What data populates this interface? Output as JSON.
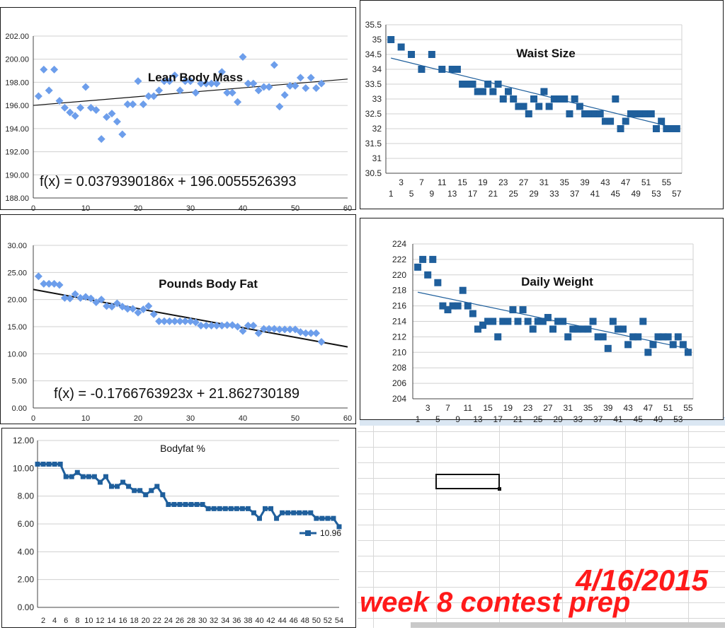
{
  "chart_data": [
    {
      "id": "lbm",
      "type": "scatter",
      "title": "Lean Body Mass",
      "equation": "f(x) = 0.0379390186x + 196.0055526393",
      "xlim": [
        0,
        60
      ],
      "xticks": [
        0,
        10,
        20,
        30,
        40,
        50,
        60
      ],
      "xtick_labels": [
        "0",
        "10",
        "20",
        "30",
        "40",
        "50",
        "60"
      ],
      "ylim": [
        188,
        202
      ],
      "yticks": [
        188,
        190,
        192,
        194,
        196,
        198,
        200,
        202
      ],
      "ytick_labels": [
        "188.00",
        "190.00",
        "192.00",
        "194.00",
        "196.00",
        "198.00",
        "200.00",
        "202.00"
      ],
      "marker": "diamond",
      "color": "#6d9eeb",
      "trendline": {
        "slope": 0.0379390186,
        "intercept": 196.0055526393,
        "x_range": [
          0,
          60
        ],
        "color": "#111111"
      },
      "series": [
        {
          "x": [
            1,
            2,
            3,
            4,
            5,
            6,
            7,
            8,
            9,
            10,
            11,
            12,
            13,
            14,
            15,
            16,
            17,
            18,
            19,
            20,
            21,
            22,
            23,
            24,
            25,
            26,
            27,
            28,
            29,
            30,
            31,
            32,
            33,
            34,
            35,
            36,
            37,
            38,
            39,
            40,
            41,
            42,
            43,
            44,
            45,
            46,
            47,
            48,
            49,
            50,
            51,
            52,
            53,
            54,
            55
          ],
          "y": [
            196.8,
            199.1,
            197.3,
            199.1,
            196.4,
            195.8,
            195.4,
            195.1,
            195.8,
            197.6,
            195.8,
            195.6,
            193.1,
            195.0,
            195.3,
            194.6,
            193.5,
            196.1,
            196.1,
            198.1,
            196.1,
            196.8,
            196.8,
            197.3,
            198.1,
            198.1,
            198.6,
            197.3,
            198.1,
            198.1,
            197.1,
            197.9,
            197.9,
            197.9,
            197.9,
            198.9,
            197.1,
            197.1,
            196.3,
            200.2,
            197.9,
            197.9,
            197.3,
            197.6,
            197.6,
            199.5,
            195.9,
            196.9,
            197.7,
            197.7,
            198.4,
            197.5,
            198.4,
            197.5,
            197.9
          ]
        }
      ]
    },
    {
      "id": "waist",
      "type": "scatter",
      "title": "Waist Size",
      "xlim": [
        0,
        58
      ],
      "xticks_top": [
        3,
        7,
        11,
        15,
        19,
        23,
        27,
        31,
        35,
        39,
        43,
        47,
        51,
        55
      ],
      "xticks_bottom": [
        1,
        5,
        9,
        13,
        17,
        21,
        25,
        29,
        33,
        37,
        41,
        45,
        49,
        53,
        57
      ],
      "ylim": [
        30.5,
        35.5
      ],
      "yticks": [
        30.5,
        31,
        31.5,
        32,
        32.5,
        33,
        33.5,
        34,
        34.5,
        35,
        35.5
      ],
      "ytick_labels": [
        "30.5",
        "31",
        "31.5",
        "32",
        "32.5",
        "33",
        "33.5",
        "34",
        "34.5",
        "35",
        "35.5"
      ],
      "marker": "square",
      "color": "#1f5f9c",
      "trendline": {
        "slope": -0.0422,
        "intercept": 34.42,
        "x_range": [
          1,
          57
        ],
        "color": "#1f5f9c"
      },
      "series": [
        {
          "x": [
            1,
            3,
            5,
            7,
            9,
            11,
            13,
            14,
            15,
            16,
            17,
            18,
            19,
            20,
            21,
            22,
            23,
            24,
            25,
            26,
            27,
            28,
            29,
            30,
            31,
            32,
            33,
            34,
            35,
            36,
            37,
            38,
            39,
            40,
            41,
            42,
            43,
            44,
            45,
            46,
            47,
            48,
            49,
            50,
            51,
            52,
            53,
            54,
            55,
            56,
            57
          ],
          "y": [
            35,
            34.75,
            34.5,
            34,
            34.5,
            34,
            34,
            34,
            33.5,
            33.5,
            33.5,
            33.25,
            33.25,
            33.5,
            33.25,
            33.5,
            33,
            33.25,
            33,
            32.75,
            32.75,
            32.5,
            33,
            32.75,
            33.25,
            32.75,
            33,
            33,
            33,
            32.5,
            33,
            32.75,
            32.5,
            32.5,
            32.5,
            32.5,
            32.25,
            32.25,
            33,
            32,
            32.25,
            32.5,
            32.5,
            32.5,
            32.5,
            32.5,
            32,
            32.25,
            32,
            32,
            32
          ]
        }
      ]
    },
    {
      "id": "fat",
      "type": "scatter",
      "title": "Pounds Body Fat",
      "equation": "f(x) = -0.1766763923x + 21.862730189",
      "xlim": [
        0,
        60
      ],
      "xticks": [
        0,
        10,
        20,
        30,
        40,
        50,
        60
      ],
      "xtick_labels": [
        "0",
        "10",
        "20",
        "30",
        "40",
        "50",
        "60"
      ],
      "ylim": [
        0,
        30
      ],
      "yticks": [
        0,
        5,
        10,
        15,
        20,
        25,
        30
      ],
      "ytick_labels": [
        "0.00",
        "5.00",
        "10.00",
        "15.00",
        "20.00",
        "25.00",
        "30.00"
      ],
      "marker": "diamond",
      "color": "#6d9eeb",
      "trendline": {
        "slope": -0.1766763923,
        "intercept": 21.862730189,
        "x_range": [
          0,
          60
        ],
        "color": "#111111"
      },
      "series": [
        {
          "x": [
            1,
            2,
            3,
            4,
            5,
            6,
            7,
            8,
            9,
            10,
            11,
            12,
            13,
            14,
            15,
            16,
            17,
            18,
            19,
            20,
            21,
            22,
            23,
            24,
            25,
            26,
            27,
            28,
            29,
            30,
            31,
            32,
            33,
            34,
            35,
            36,
            37,
            38,
            39,
            40,
            41,
            42,
            43,
            44,
            45,
            46,
            47,
            48,
            49,
            50,
            51,
            52,
            53,
            54,
            55
          ],
          "y": [
            24.3,
            22.9,
            22.9,
            22.9,
            22.7,
            20.3,
            20.2,
            21.0,
            20.3,
            20.5,
            20.2,
            19.5,
            20.0,
            18.8,
            18.7,
            19.3,
            18.7,
            18.3,
            18.3,
            17.6,
            18.2,
            18.8,
            17.3,
            16.0,
            16.0,
            16.0,
            16.0,
            16.0,
            16.0,
            16.0,
            15.8,
            15.2,
            15.2,
            15.2,
            15.2,
            15.2,
            15.3,
            15.3,
            15.0,
            14.2,
            15.2,
            15.2,
            13.8,
            14.6,
            14.6,
            14.6,
            14.5,
            14.5,
            14.5,
            14.5,
            14.0,
            13.8,
            13.8,
            13.8,
            12.2
          ]
        }
      ]
    },
    {
      "id": "dw",
      "type": "scatter",
      "title": "Daily Weight",
      "xlim": [
        0,
        56
      ],
      "xticks_top": [
        3,
        7,
        11,
        15,
        19,
        23,
        27,
        31,
        35,
        39,
        43,
        47,
        51,
        55
      ],
      "xticks_bottom": [
        1,
        5,
        9,
        13,
        17,
        21,
        25,
        29,
        33,
        37,
        41,
        45,
        49,
        53
      ],
      "ylim": [
        204,
        224
      ],
      "yticks": [
        204,
        206,
        208,
        210,
        212,
        214,
        216,
        218,
        220,
        222,
        224
      ],
      "ytick_labels": [
        "204",
        "206",
        "208",
        "210",
        "212",
        "214",
        "216",
        "218",
        "220",
        "222",
        "224"
      ],
      "marker": "square",
      "color": "#1f5f9c",
      "trendline": {
        "slope": -0.135,
        "intercept": 217.9,
        "x_range": [
          1,
          55
        ],
        "color": "#1f5f9c"
      },
      "series": [
        {
          "x": [
            1,
            2,
            3,
            4,
            5,
            6,
            7,
            8,
            9,
            10,
            11,
            12,
            13,
            14,
            15,
            16,
            17,
            18,
            19,
            20,
            21,
            22,
            23,
            24,
            25,
            26,
            27,
            28,
            29,
            30,
            31,
            32,
            33,
            34,
            35,
            36,
            37,
            38,
            39,
            40,
            41,
            42,
            43,
            44,
            45,
            46,
            47,
            48,
            49,
            50,
            51,
            52,
            53,
            54,
            55
          ],
          "y": [
            221,
            222,
            220,
            222,
            219,
            216,
            215.5,
            216,
            216,
            218,
            216,
            215,
            213,
            213.5,
            214,
            214,
            212,
            214,
            214,
            215.5,
            214,
            215.5,
            214,
            213,
            214,
            214,
            214.5,
            213,
            214,
            214,
            212,
            213,
            213,
            213,
            213,
            214,
            212,
            212,
            210.5,
            214,
            213,
            213,
            211,
            212,
            212,
            214,
            210,
            211,
            212,
            212,
            212,
            211,
            212,
            211,
            210
          ]
        }
      ]
    },
    {
      "id": "bf",
      "type": "line",
      "title": "Bodyfat %",
      "legend": "10.96",
      "legend_position": "right",
      "xlim": [
        1,
        54
      ],
      "xticks": [
        2,
        4,
        6,
        8,
        10,
        12,
        14,
        16,
        18,
        20,
        22,
        24,
        26,
        28,
        30,
        32,
        34,
        36,
        38,
        40,
        42,
        44,
        46,
        48,
        50,
        52,
        54
      ],
      "ylim": [
        0,
        12
      ],
      "yticks": [
        0,
        2,
        4,
        6,
        8,
        10,
        12
      ],
      "ytick_labels": [
        "0.00",
        "2.00",
        "4.00",
        "6.00",
        "8.00",
        "10.00",
        "12.00"
      ],
      "marker": "square",
      "color": "#1f5f9c",
      "series": [
        {
          "name": "10.96",
          "x": [
            1,
            2,
            3,
            4,
            5,
            6,
            7,
            8,
            9,
            10,
            11,
            12,
            13,
            14,
            15,
            16,
            17,
            18,
            19,
            20,
            21,
            22,
            23,
            24,
            25,
            26,
            27,
            28,
            29,
            30,
            31,
            32,
            33,
            34,
            35,
            36,
            37,
            38,
            39,
            40,
            41,
            42,
            43,
            44,
            45,
            46,
            47,
            48,
            49,
            50,
            51,
            52,
            53,
            54
          ],
          "y": [
            10.3,
            10.3,
            10.3,
            10.3,
            10.3,
            9.4,
            9.4,
            9.7,
            9.4,
            9.4,
            9.4,
            9.0,
            9.4,
            8.7,
            8.7,
            9.0,
            8.7,
            8.4,
            8.4,
            8.1,
            8.4,
            8.7,
            8.1,
            7.4,
            7.4,
            7.4,
            7.4,
            7.4,
            7.4,
            7.4,
            7.1,
            7.1,
            7.1,
            7.1,
            7.1,
            7.1,
            7.1,
            7.1,
            6.8,
            6.4,
            7.1,
            7.1,
            6.4,
            6.8,
            6.8,
            6.8,
            6.8,
            6.8,
            6.8,
            6.4,
            6.4,
            6.4,
            6.4,
            5.8
          ]
        }
      ]
    }
  ],
  "captions": {
    "date": "4/16/2015",
    "subtitle": "week 8 contest prep"
  }
}
